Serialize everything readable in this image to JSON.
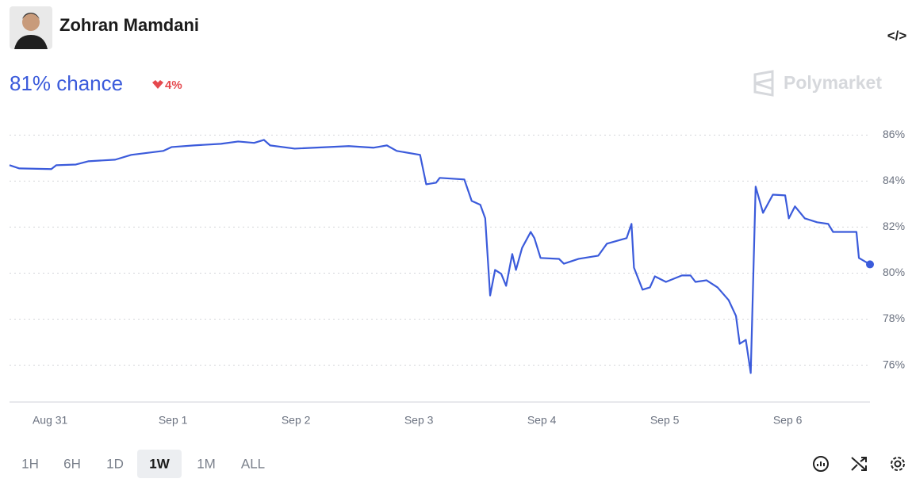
{
  "header": {
    "name": "Zohran Mamdani",
    "chance": "81% chance",
    "change": "4%",
    "brand": "Polymarket"
  },
  "chart_data": {
    "type": "line",
    "color": "#3b5bdb",
    "x": [
      -0.33,
      -0.25,
      0.01,
      0.05,
      0.21,
      0.31,
      0.53,
      0.66,
      0.92,
      0.99,
      1.17,
      1.39,
      1.53,
      1.66,
      1.74,
      1.79,
      1.99,
      2.43,
      2.63,
      2.74,
      2.82,
      3.01,
      3.06,
      3.14,
      3.17,
      3.37,
      3.43,
      3.5,
      3.54,
      3.58,
      3.62,
      3.67,
      3.71,
      3.76,
      3.79,
      3.84,
      3.91,
      3.94,
      3.99,
      4.14,
      4.18,
      4.3,
      4.46,
      4.53,
      4.69,
      4.73,
      4.75,
      4.82,
      4.88,
      4.92,
      5.01,
      5.14,
      5.21,
      5.25,
      5.34,
      5.43,
      5.52,
      5.58,
      5.61,
      5.66,
      5.7,
      5.74,
      5.8,
      5.88,
      5.98,
      6.01,
      6.06,
      6.14,
      6.24,
      6.33,
      6.37,
      6.46,
      6.56,
      6.58,
      6.67
    ],
    "values": [
      84.69,
      84.55,
      84.52,
      84.69,
      84.72,
      84.86,
      84.93,
      85.14,
      85.31,
      85.48,
      85.55,
      85.62,
      85.72,
      85.66,
      85.79,
      85.55,
      85.41,
      85.52,
      85.45,
      85.55,
      85.31,
      85.14,
      83.86,
      83.93,
      84.14,
      84.07,
      83.14,
      82.97,
      82.38,
      79.03,
      80.14,
      79.97,
      79.45,
      80.83,
      80.14,
      81.1,
      81.79,
      81.52,
      80.66,
      80.62,
      80.41,
      80.62,
      80.76,
      81.28,
      81.52,
      82.14,
      80.24,
      79.28,
      79.38,
      79.86,
      79.62,
      79.9,
      79.9,
      79.62,
      79.69,
      79.38,
      78.83,
      78.14,
      76.93,
      77.1,
      75.66,
      83.76,
      82.62,
      83.41,
      83.38,
      82.38,
      82.9,
      82.38,
      82.21,
      82.14,
      81.79,
      81.79,
      81.79,
      80.66,
      80.38
    ],
    "xlim": [
      -0.33,
      6.67
    ],
    "ylim": [
      74.4,
      86.7
    ],
    "xticks": [
      {
        "value": 0,
        "label": "Aug 31"
      },
      {
        "value": 1,
        "label": "Sep 1"
      },
      {
        "value": 2,
        "label": "Sep 2"
      },
      {
        "value": 3,
        "label": "Sep 3"
      },
      {
        "value": 4,
        "label": "Sep 4"
      },
      {
        "value": 5,
        "label": "Sep 5"
      },
      {
        "value": 6,
        "label": "Sep 6"
      }
    ],
    "yticks": [
      {
        "value": 76,
        "label": "76%"
      },
      {
        "value": 78,
        "label": "78%"
      },
      {
        "value": 80,
        "label": "80%"
      },
      {
        "value": 82,
        "label": "82%"
      },
      {
        "value": 84,
        "label": "84%"
      },
      {
        "value": 86,
        "label": "86%"
      }
    ],
    "grid": true
  },
  "controls": {
    "ranges": [
      "1H",
      "6H",
      "1D",
      "1W",
      "1M",
      "ALL"
    ],
    "active": 3
  }
}
